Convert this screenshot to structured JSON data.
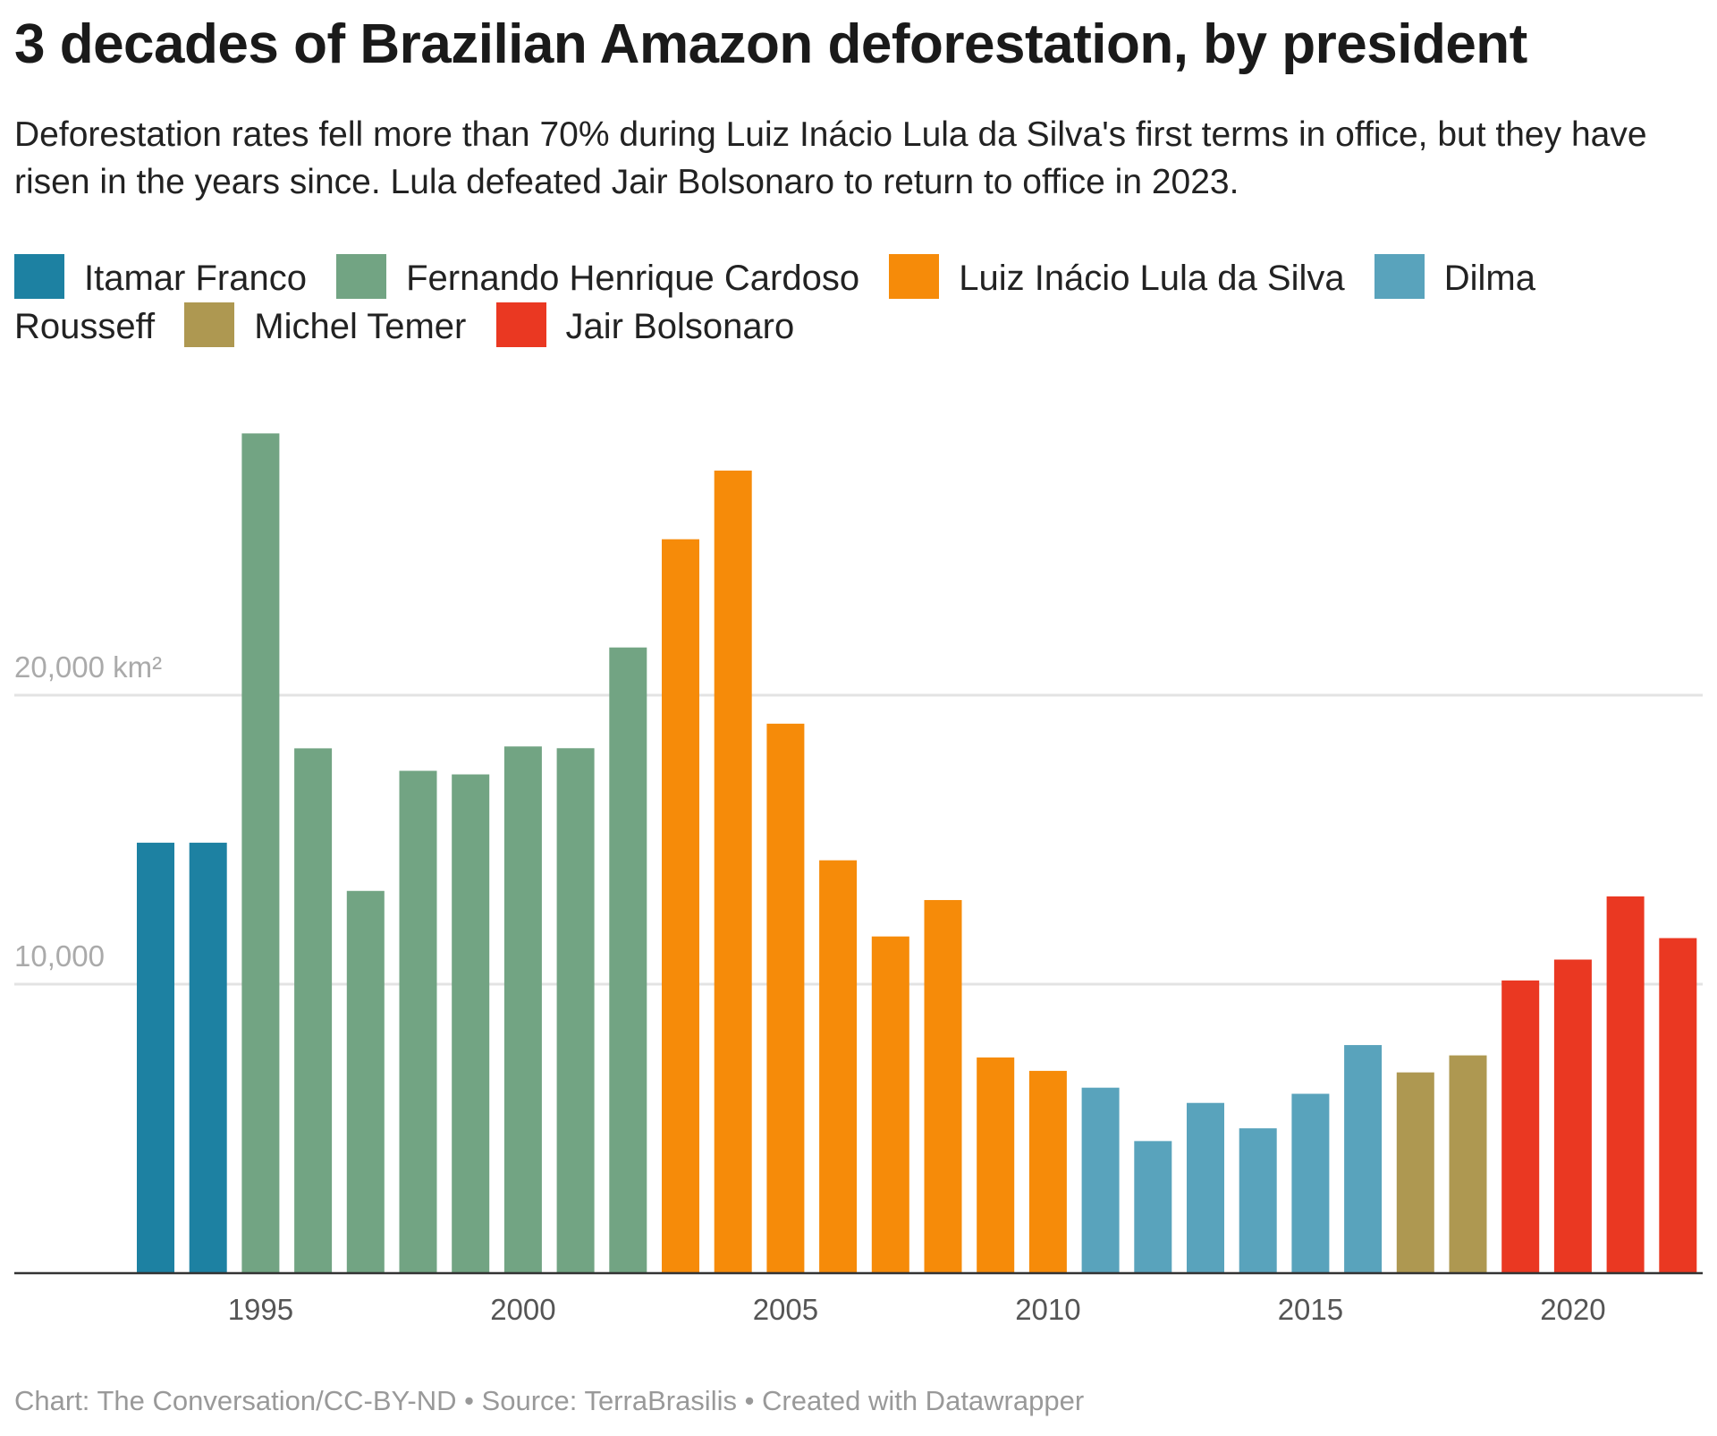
{
  "title": "3 decades of Brazilian Amazon deforestation, by president",
  "subtitle": "Deforestation rates fell more than 70% during Luiz Inácio Lula da Silva's first terms in office, but they have risen in the years since. Lula defeated Jair Bolsonaro to return to office in 2023.",
  "footer": "Chart: The Conversation/CC-BY-ND • Source: TerraBrasilis • Created with Datawrapper",
  "chart_data": {
    "type": "bar",
    "title": "3 decades of Brazilian Amazon deforestation, by president",
    "ylabel": "km²",
    "ylim": [
      0,
      30000
    ],
    "y_ticks": [
      {
        "value": 10000,
        "label": "10,000"
      },
      {
        "value": 20000,
        "label": "20,000 km²"
      }
    ],
    "x_ticks": [
      "1995",
      "2000",
      "2005",
      "2010",
      "2015",
      "2020"
    ],
    "grid": true,
    "legend_placement": "top",
    "legend": [
      {
        "name": "Itamar Franco",
        "color": "#1d81a2"
      },
      {
        "name": "Fernando Henrique Cardoso",
        "color": "#72a483"
      },
      {
        "name": "Luiz Inácio Lula da Silva",
        "color": "#f68b09"
      },
      {
        "name": "Dilma Rousseff",
        "color": "#59a3bc"
      },
      {
        "name": "Michel Temer",
        "color": "#ae9851"
      },
      {
        "name": "Jair Bolsonaro",
        "color": "#ea3822"
      }
    ],
    "categories": [
      1993,
      1994,
      1995,
      1996,
      1997,
      1998,
      1999,
      2000,
      2001,
      2002,
      2003,
      2004,
      2005,
      2006,
      2007,
      2008,
      2009,
      2010,
      2011,
      2012,
      2013,
      2014,
      2015,
      2016,
      2017,
      2018,
      2019,
      2020,
      2021,
      2022
    ],
    "values": [
      14896,
      14896,
      29059,
      18161,
      13227,
      17383,
      17259,
      18226,
      18165,
      21651,
      25396,
      27772,
      19014,
      14286,
      11651,
      12911,
      7464,
      7000,
      6418,
      4571,
      5891,
      5012,
      6207,
      7893,
      6947,
      7536,
      10129,
      10851,
      13038,
      11594
    ],
    "president": [
      0,
      0,
      1,
      1,
      1,
      1,
      1,
      1,
      1,
      1,
      2,
      2,
      2,
      2,
      2,
      2,
      2,
      2,
      3,
      3,
      3,
      3,
      3,
      3,
      4,
      4,
      5,
      5,
      5,
      5
    ]
  }
}
